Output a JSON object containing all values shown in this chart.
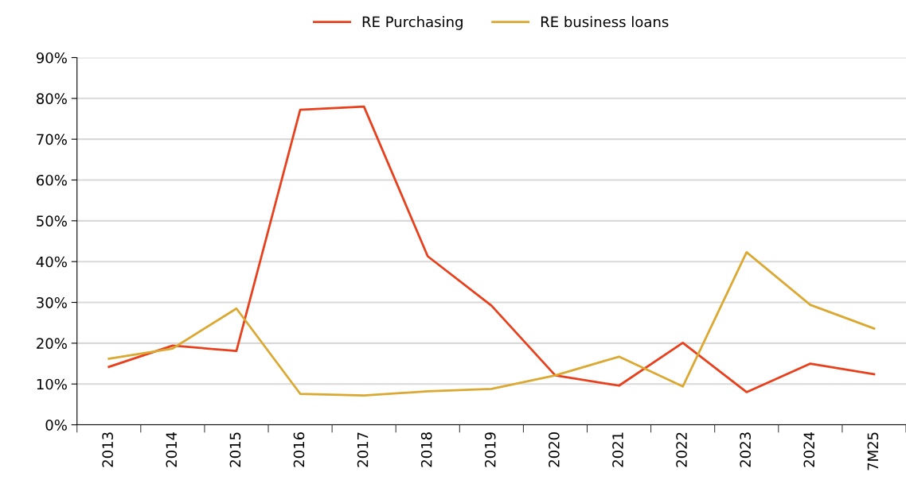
{
  "chart_data": {
    "type": "line",
    "categories": [
      "2013",
      "2014",
      "2015",
      "2016",
      "2017",
      "2018",
      "2019",
      "2020",
      "2021",
      "2022",
      "2023",
      "2024",
      "7M25"
    ],
    "series": [
      {
        "name": "RE Purchasing",
        "color": "#e8401c",
        "values": [
          14.2,
          19.4,
          18.1,
          77.2,
          78.0,
          41.3,
          29.2,
          12.1,
          9.6,
          20.1,
          8.0,
          15.0,
          12.4
        ]
      },
      {
        "name": "RE business loans",
        "color": "#dba832",
        "values": [
          16.2,
          18.7,
          28.5,
          7.6,
          7.2,
          8.2,
          8.8,
          12.1,
          16.7,
          9.4,
          42.3,
          29.4,
          23.6
        ]
      }
    ],
    "ylim": [
      0,
      90
    ],
    "yticks": [
      {
        "value": 0,
        "label": "0%"
      },
      {
        "value": 10,
        "label": "10%"
      },
      {
        "value": 20,
        "label": "20%"
      },
      {
        "value": 30,
        "label": "30%"
      },
      {
        "value": 40,
        "label": "40%"
      },
      {
        "value": 50,
        "label": "50%"
      },
      {
        "value": 60,
        "label": "60%"
      },
      {
        "value": 70,
        "label": "70%"
      },
      {
        "value": 80,
        "label": "80%"
      },
      {
        "value": 90,
        "label": "90%"
      }
    ],
    "grid": "y",
    "legend": "top",
    "marker": "none",
    "line_style": "solid"
  }
}
